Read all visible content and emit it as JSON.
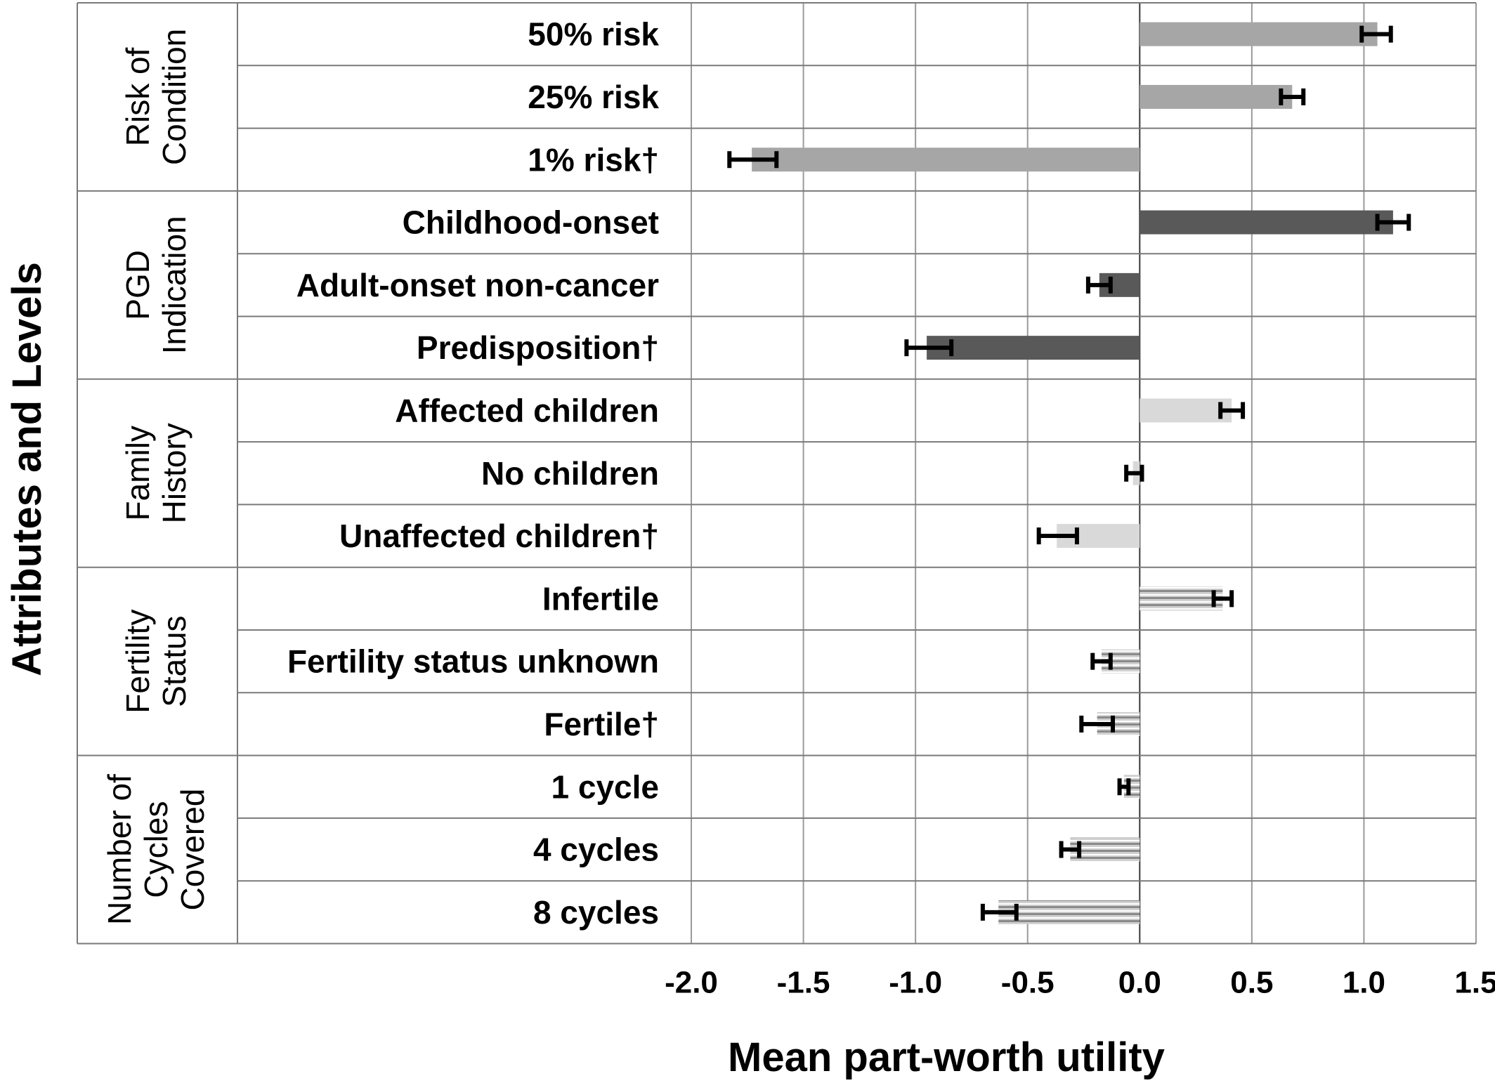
{
  "chart_data": {
    "type": "bar",
    "orientation": "horizontal",
    "title": "",
    "xlabel": "Mean part-worth utility",
    "ylabel": "Attributes and Levels",
    "xlim": [
      -2.0,
      1.5
    ],
    "xticks": [
      "-2.0",
      "-1.5",
      "-1.0",
      "-0.5",
      "0.0",
      "0.5",
      "1.0",
      "1.5"
    ],
    "grid": "vertical",
    "groups": [
      {
        "name": "Risk of Condition",
        "lines": [
          "Risk of",
          "Condition"
        ],
        "color": "#a6a6a6",
        "pattern": "solid",
        "levels": [
          {
            "label": "50% risk",
            "value": 1.06,
            "err_low": 0.99,
            "err_high": 1.12
          },
          {
            "label": "25% risk",
            "value": 0.68,
            "err_low": 0.63,
            "err_high": 0.73
          },
          {
            "label": "1% risk†",
            "value": -1.73,
            "err_low": -1.83,
            "err_high": -1.62
          }
        ]
      },
      {
        "name": "PGD Indication",
        "lines": [
          "PGD",
          "Indication"
        ],
        "color": "#595959",
        "pattern": "solid",
        "levels": [
          {
            "label": "Childhood-onset",
            "value": 1.13,
            "err_low": 1.06,
            "err_high": 1.2
          },
          {
            "label": "Adult-onset non-cancer",
            "value": -0.18,
            "err_low": -0.23,
            "err_high": -0.13
          },
          {
            "label": "Predisposition†",
            "value": -0.95,
            "err_low": -1.04,
            "err_high": -0.84
          }
        ]
      },
      {
        "name": "Family History",
        "lines": [
          "Family",
          "History"
        ],
        "color": "#d9d9d9",
        "pattern": "solid",
        "levels": [
          {
            "label": "Affected children",
            "value": 0.41,
            "err_low": 0.36,
            "err_high": 0.46
          },
          {
            "label": "No children",
            "value": -0.03,
            "err_low": -0.06,
            "err_high": 0.01
          },
          {
            "label": "Unaffected children†",
            "value": -0.37,
            "err_low": -0.45,
            "err_high": -0.28
          }
        ]
      },
      {
        "name": "Fertility Status",
        "lines": [
          "Fertility",
          "Status"
        ],
        "color": "#bfbfbf",
        "pattern": "striped",
        "levels": [
          {
            "label": "Infertile",
            "value": 0.37,
            "err_low": 0.33,
            "err_high": 0.41
          },
          {
            "label": "Fertility status unknown",
            "value": -0.17,
            "err_low": -0.21,
            "err_high": -0.13
          },
          {
            "label": "Fertile†",
            "value": -0.19,
            "err_low": -0.26,
            "err_high": -0.12
          }
        ]
      },
      {
        "name": "Number of Cycles Covered",
        "lines": [
          "Number of",
          "Cycles",
          "Covered"
        ],
        "color": "#bfbfbf",
        "pattern": "striped",
        "levels": [
          {
            "label": "1 cycle",
            "value": -0.07,
            "err_low": -0.09,
            "err_high": -0.05
          },
          {
            "label": "4 cycles",
            "value": -0.31,
            "err_low": -0.35,
            "err_high": -0.27
          },
          {
            "label": "8 cycles",
            "value": -0.63,
            "err_low": -0.7,
            "err_high": -0.55
          }
        ]
      }
    ]
  }
}
